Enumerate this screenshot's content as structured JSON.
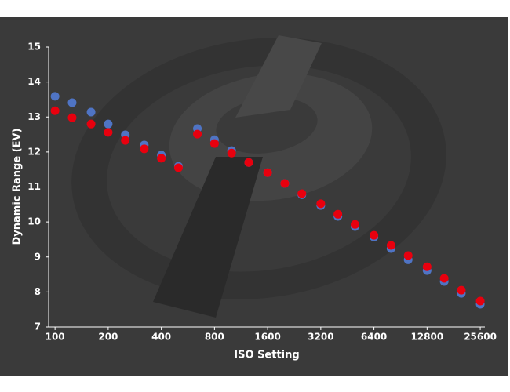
{
  "chart_data": {
    "type": "scatter",
    "x_label": "ISO Setting",
    "y_label": "Dynamic Range (EV)",
    "x": [
      100,
      125,
      160,
      200,
      250,
      320,
      400,
      500,
      640,
      800,
      1000,
      1250,
      1600,
      2000,
      2500,
      3200,
      4000,
      5000,
      6400,
      8000,
      10000,
      12800,
      16000,
      20000,
      25600
    ],
    "series": [
      {
        "color": "#4f74c4",
        "values": [
          13.59,
          13.41,
          13.14,
          12.8,
          12.49,
          12.2,
          11.91,
          11.59,
          12.67,
          12.35,
          12.04,
          11.7,
          11.41,
          11.1,
          10.78,
          10.47,
          10.16,
          9.87,
          9.57,
          9.24,
          8.92,
          8.61,
          8.3,
          7.96,
          7.65
        ]
      },
      {
        "color": "#e8000e",
        "values": [
          13.18,
          12.98,
          12.8,
          12.56,
          12.33,
          12.09,
          11.82,
          11.55,
          12.51,
          12.24,
          11.97,
          11.7,
          11.41,
          11.1,
          10.81,
          10.52,
          10.22,
          9.93,
          9.62,
          9.33,
          9.04,
          8.72,
          8.39,
          8.05,
          7.74
        ]
      }
    ],
    "log_x": true,
    "xlim": [
      92,
      27200
    ],
    "xticks": [
      100,
      200,
      400,
      800,
      1600,
      3200,
      6400,
      12800,
      25600
    ],
    "ylim": [
      7,
      15
    ],
    "yticks": [
      7,
      8,
      9,
      10,
      11,
      12,
      13,
      14,
      15
    ]
  }
}
